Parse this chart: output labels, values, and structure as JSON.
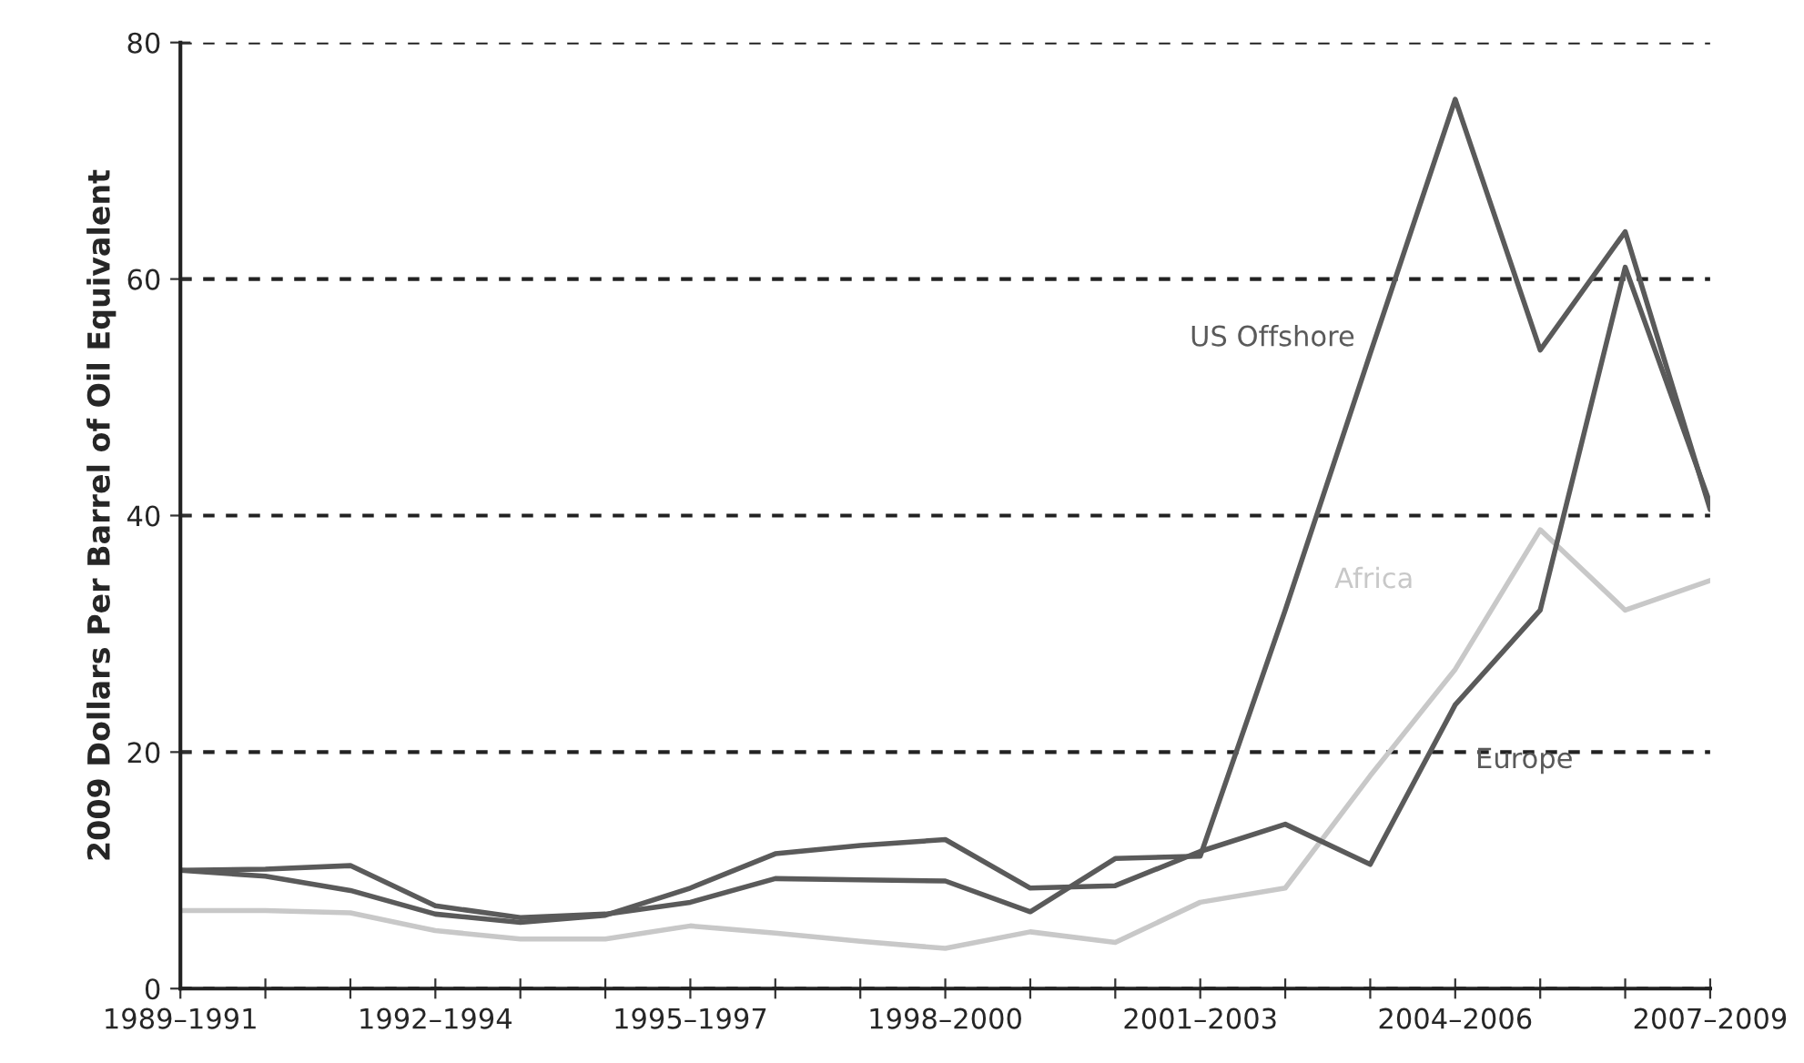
{
  "chart_data": {
    "type": "line",
    "ylabel": "2009 Dollars Per Barrel of Oil Equivalent",
    "categories": [
      "1989–1991",
      null,
      null,
      "1992–1994",
      null,
      null,
      "1995–1997",
      null,
      null,
      "1998–2000",
      null,
      null,
      "2001–2003",
      null,
      null,
      "2004–2006",
      null,
      null,
      "2007–2009"
    ],
    "series": [
      {
        "name": "US Offshore",
        "color": "#5a5a5a",
        "values": [
          10.0,
          10.1,
          10.4,
          7.0,
          6.0,
          6.3,
          7.3,
          9.3,
          9.2,
          9.1,
          6.5,
          11.0,
          11.2,
          32,
          53.7,
          75.2,
          54,
          64,
          40.5
        ]
      },
      {
        "name": "Africa",
        "color": "#c8c8c8",
        "values": [
          6.6,
          6.6,
          6.4,
          4.9,
          4.2,
          4.2,
          5.3,
          4.7,
          4.0,
          3.4,
          4.8,
          3.9,
          7.3,
          8.5,
          18,
          27,
          38.8,
          32,
          34.5
        ]
      },
      {
        "name": "Europe",
        "color": "#5a5a5a",
        "values": [
          10.0,
          9.5,
          8.3,
          6.3,
          5.6,
          6.2,
          8.5,
          11.4,
          12.1,
          12.6,
          8.5,
          8.7,
          11.6,
          13.9,
          10.5,
          24,
          32,
          61,
          41
        ]
      }
    ],
    "ylim": [
      0,
      80
    ],
    "yticks": [
      0,
      20,
      40,
      60,
      80
    ],
    "grid": "y",
    "marker": "none",
    "line_style": "solid"
  }
}
